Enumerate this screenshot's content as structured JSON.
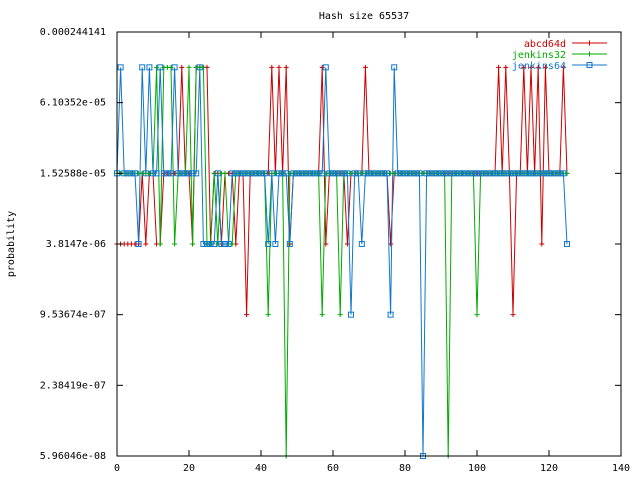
{
  "chart_data": {
    "type": "line",
    "title": "Hash size 65537",
    "xlabel": "",
    "ylabel": "probability",
    "xlim": [
      0,
      140
    ],
    "ylim": [
      5.96046e-08,
      0.000244141
    ],
    "yscale": "log",
    "x_ticks": [
      0,
      20,
      40,
      60,
      80,
      100,
      120,
      140
    ],
    "y_ticks": [
      {
        "value": 0.000244141,
        "label": "0.000244141"
      },
      {
        "value": 6.10352e-05,
        "label": "6.10352e-05"
      },
      {
        "value": 1.52588e-05,
        "label": "1.52588e-05"
      },
      {
        "value": 3.8147e-06,
        "label": "3.8147e-06"
      },
      {
        "value": 9.53674e-07,
        "label": "9.53674e-07"
      },
      {
        "value": 2.38419e-07,
        "label": "2.38419e-07"
      },
      {
        "value": 5.96046e-08,
        "label": "5.96046e-08"
      }
    ],
    "grid": false,
    "legend_position": "top-right",
    "series": [
      {
        "name": "abcd64d",
        "color": "#cc0000",
        "marker": "plus",
        "values": [
          3.8147e-06,
          3.8147e-06,
          3.8147e-06,
          3.8147e-06,
          3.8147e-06,
          3.8147e-06,
          3.8147e-06,
          1.52588e-05,
          3.8147e-06,
          1.52588e-05,
          1.52588e-05,
          3.8147e-06,
          3.8147e-06,
          1.52588e-05,
          1.52588e-05,
          1.52588e-05,
          1.52588e-05,
          1.52588e-05,
          0.00012207,
          1.52588e-05,
          1.52588e-05,
          3.8147e-06,
          0.00012207,
          0.00012207,
          0.00012207,
          0.00012207,
          3.8147e-06,
          1.52588e-05,
          1.52588e-05,
          3.8147e-06,
          1.52588e-05,
          1.52588e-05,
          1.52588e-05,
          3.8147e-06,
          1.52588e-05,
          1.52588e-05,
          9.53674e-07,
          1.52588e-05,
          1.52588e-05,
          1.52588e-05,
          1.52588e-05,
          1.52588e-05,
          1.52588e-05,
          0.00012207,
          1.52588e-05,
          0.00012207,
          1.52588e-05,
          0.00012207,
          3.8147e-06,
          1.52588e-05,
          1.52588e-05,
          1.52588e-05,
          1.52588e-05,
          1.52588e-05,
          1.52588e-05,
          1.52588e-05,
          1.52588e-05,
          0.00012207,
          3.8147e-06,
          1.52588e-05,
          1.52588e-05,
          1.52588e-05,
          1.52588e-05,
          1.52588e-05,
          3.8147e-06,
          1.52588e-05,
          1.52588e-05,
          1.52588e-05,
          1.52588e-05,
          0.00012207,
          1.52588e-05,
          1.52588e-05,
          1.52588e-05,
          1.52588e-05,
          1.52588e-05,
          1.52588e-05,
          3.8147e-06,
          1.52588e-05,
          1.52588e-05,
          1.52588e-05,
          1.52588e-05,
          1.52588e-05,
          1.52588e-05,
          1.52588e-05,
          1.52588e-05,
          1.52588e-05,
          1.52588e-05,
          1.52588e-05,
          1.52588e-05,
          1.52588e-05,
          1.52588e-05,
          1.52588e-05,
          1.52588e-05,
          1.52588e-05,
          1.52588e-05,
          1.52588e-05,
          1.52588e-05,
          1.52588e-05,
          1.52588e-05,
          1.52588e-05,
          1.52588e-05,
          1.52588e-05,
          1.52588e-05,
          1.52588e-05,
          1.52588e-05,
          1.52588e-05,
          0.00012207,
          1.52588e-05,
          0.00012207,
          1.52588e-05,
          9.53674e-07,
          1.52588e-05,
          1.52588e-05,
          0.00012207,
          1.52588e-05,
          0.00012207,
          1.52588e-05,
          0.00012207,
          3.8147e-06,
          0.00012207,
          1.52588e-05,
          1.52588e-05,
          1.52588e-05,
          1.52588e-05,
          0.00012207,
          1.52588e-05
        ]
      },
      {
        "name": "jenkins32",
        "color": "#00aa00",
        "marker": "plus",
        "values": [
          1.52588e-05,
          1.52588e-05,
          1.52588e-05,
          1.52588e-05,
          1.52588e-05,
          1.52588e-05,
          1.52588e-05,
          1.52588e-05,
          1.52588e-05,
          1.52588e-05,
          1.52588e-05,
          0.00012207,
          3.8147e-06,
          0.00012207,
          0.00012207,
          0.00012207,
          3.8147e-06,
          1.52588e-05,
          1.52588e-05,
          1.52588e-05,
          0.00012207,
          3.8147e-06,
          0.00012207,
          0.00012207,
          0.00012207,
          3.8147e-06,
          3.8147e-06,
          1.52588e-05,
          3.8147e-06,
          1.52588e-05,
          1.52588e-05,
          3.8147e-06,
          3.8147e-06,
          1.52588e-05,
          1.52588e-05,
          1.52588e-05,
          1.52588e-05,
          1.52588e-05,
          1.52588e-05,
          1.52588e-05,
          1.52588e-05,
          1.52588e-05,
          9.53674e-07,
          1.52588e-05,
          1.52588e-05,
          1.52588e-05,
          1.52588e-05,
          5.96046e-08,
          1.52588e-05,
          1.52588e-05,
          1.52588e-05,
          1.52588e-05,
          1.52588e-05,
          1.52588e-05,
          1.52588e-05,
          1.52588e-05,
          1.52588e-05,
          9.53674e-07,
          1.52588e-05,
          1.52588e-05,
          1.52588e-05,
          1.52588e-05,
          9.53674e-07,
          1.52588e-05,
          1.52588e-05,
          1.52588e-05,
          1.52588e-05,
          1.52588e-05,
          1.52588e-05,
          1.52588e-05,
          1.52588e-05,
          1.52588e-05,
          1.52588e-05,
          1.52588e-05,
          1.52588e-05,
          1.52588e-05,
          1.52588e-05,
          1.52588e-05,
          1.52588e-05,
          1.52588e-05,
          1.52588e-05,
          1.52588e-05,
          1.52588e-05,
          1.52588e-05,
          1.52588e-05,
          1.52588e-05,
          1.52588e-05,
          1.52588e-05,
          1.52588e-05,
          1.52588e-05,
          1.52588e-05,
          1.52588e-05,
          5.96046e-08,
          1.52588e-05,
          1.52588e-05,
          1.52588e-05,
          1.52588e-05,
          1.52588e-05,
          1.52588e-05,
          1.52588e-05,
          9.53674e-07,
          1.52588e-05,
          1.52588e-05,
          1.52588e-05,
          1.52588e-05,
          1.52588e-05,
          1.52588e-05,
          1.52588e-05,
          1.52588e-05,
          1.52588e-05,
          1.52588e-05,
          1.52588e-05,
          1.52588e-05,
          1.52588e-05,
          1.52588e-05,
          1.52588e-05,
          1.52588e-05,
          1.52588e-05,
          1.52588e-05,
          1.52588e-05,
          1.52588e-05,
          1.52588e-05,
          1.52588e-05,
          1.52588e-05,
          1.52588e-05,
          1.52588e-05
        ]
      },
      {
        "name": "jenkins64",
        "color": "#1177cc",
        "marker": "square",
        "values": [
          1.52588e-05,
          0.00012207,
          1.52588e-05,
          1.52588e-05,
          1.52588e-05,
          1.52588e-05,
          3.8147e-06,
          0.00012207,
          1.52588e-05,
          0.00012207,
          1.52588e-05,
          1.52588e-05,
          0.00012207,
          1.52588e-05,
          1.52588e-05,
          1.52588e-05,
          0.00012207,
          1.52588e-05,
          1.52588e-05,
          1.52588e-05,
          1.52588e-05,
          1.52588e-05,
          1.52588e-05,
          0.00012207,
          3.8147e-06,
          3.8147e-06,
          3.8147e-06,
          3.8147e-06,
          1.52588e-05,
          3.8147e-06,
          3.8147e-06,
          3.8147e-06,
          1.52588e-05,
          1.52588e-05,
          1.52588e-05,
          1.52588e-05,
          1.52588e-05,
          1.52588e-05,
          1.52588e-05,
          1.52588e-05,
          1.52588e-05,
          1.52588e-05,
          3.8147e-06,
          1.52588e-05,
          3.8147e-06,
          1.52588e-05,
          1.52588e-05,
          1.52588e-05,
          3.8147e-06,
          1.52588e-05,
          1.52588e-05,
          1.52588e-05,
          1.52588e-05,
          1.52588e-05,
          1.52588e-05,
          1.52588e-05,
          1.52588e-05,
          1.52588e-05,
          0.00012207,
          1.52588e-05,
          1.52588e-05,
          1.52588e-05,
          1.52588e-05,
          1.52588e-05,
          1.52588e-05,
          9.53674e-07,
          1.52588e-05,
          1.52588e-05,
          3.8147e-06,
          1.52588e-05,
          1.52588e-05,
          1.52588e-05,
          1.52588e-05,
          1.52588e-05,
          1.52588e-05,
          1.52588e-05,
          9.53674e-07,
          0.00012207,
          1.52588e-05,
          1.52588e-05,
          1.52588e-05,
          1.52588e-05,
          1.52588e-05,
          1.52588e-05,
          1.52588e-05,
          5.96046e-08,
          1.52588e-05,
          1.52588e-05,
          1.52588e-05,
          1.52588e-05,
          1.52588e-05,
          1.52588e-05,
          1.52588e-05,
          1.52588e-05,
          1.52588e-05,
          1.52588e-05,
          1.52588e-05,
          1.52588e-05,
          1.52588e-05,
          1.52588e-05,
          1.52588e-05,
          1.52588e-05,
          1.52588e-05,
          1.52588e-05,
          1.52588e-05,
          1.52588e-05,
          1.52588e-05,
          1.52588e-05,
          1.52588e-05,
          1.52588e-05,
          1.52588e-05,
          1.52588e-05,
          1.52588e-05,
          1.52588e-05,
          1.52588e-05,
          1.52588e-05,
          1.52588e-05,
          1.52588e-05,
          1.52588e-05,
          1.52588e-05,
          1.52588e-05,
          1.52588e-05,
          1.52588e-05,
          1.52588e-05,
          1.52588e-05,
          3.8147e-06
        ]
      }
    ]
  }
}
